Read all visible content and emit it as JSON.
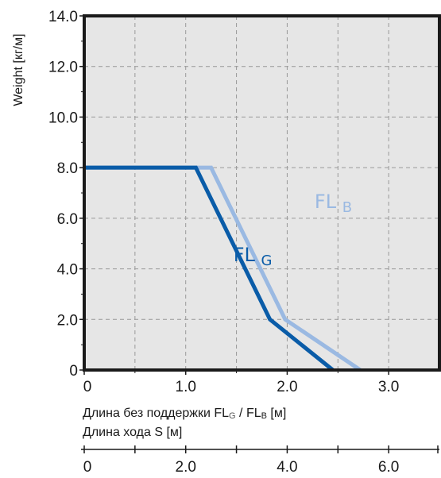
{
  "chart_data": {
    "type": "line",
    "ylabel": "Weight  [кг/м]",
    "ylim": [
      0,
      14
    ],
    "y_ticks": [
      "0",
      "2.0",
      "4.0",
      "6.0",
      "8.0",
      "10.0",
      "12.0",
      "14.0"
    ],
    "y_tick_values": [
      0,
      2,
      4,
      6,
      8,
      10,
      12,
      14
    ],
    "xlim": [
      0,
      3.5
    ],
    "x_ticks": [
      "0",
      "1.0",
      "2.0",
      "3.0"
    ],
    "x_tick_values": [
      0,
      1,
      2,
      3
    ],
    "xlabel": {
      "prefix": "Длина без поддержки FL",
      "sub1": "G",
      "mid": " / FL",
      "sub2": "B",
      "suffix": " [м]"
    },
    "secondary_axis": {
      "label": "Длина хода S  [м]",
      "lim": [
        0,
        7
      ],
      "ticks": [
        "0",
        "2.0",
        "4.0",
        "6.0"
      ],
      "tick_values": [
        0,
        2,
        4,
        6
      ]
    },
    "grid": true,
    "colors": {
      "background": "#e6e6e6",
      "grid": "#999999",
      "frame": "#1a1a1a"
    },
    "series": [
      {
        "name": "FL",
        "subscript": "G",
        "color": "#0a5ca8",
        "x": [
          0,
          1.1,
          1.83,
          2.45
        ],
        "y": [
          8.0,
          8.0,
          2.0,
          0
        ]
      },
      {
        "name": "FL",
        "subscript": "B",
        "color": "#9ab9e2",
        "x": [
          0,
          1.25,
          1.98,
          2.72
        ],
        "y": [
          8.0,
          8.0,
          2.0,
          0
        ]
      }
    ]
  }
}
